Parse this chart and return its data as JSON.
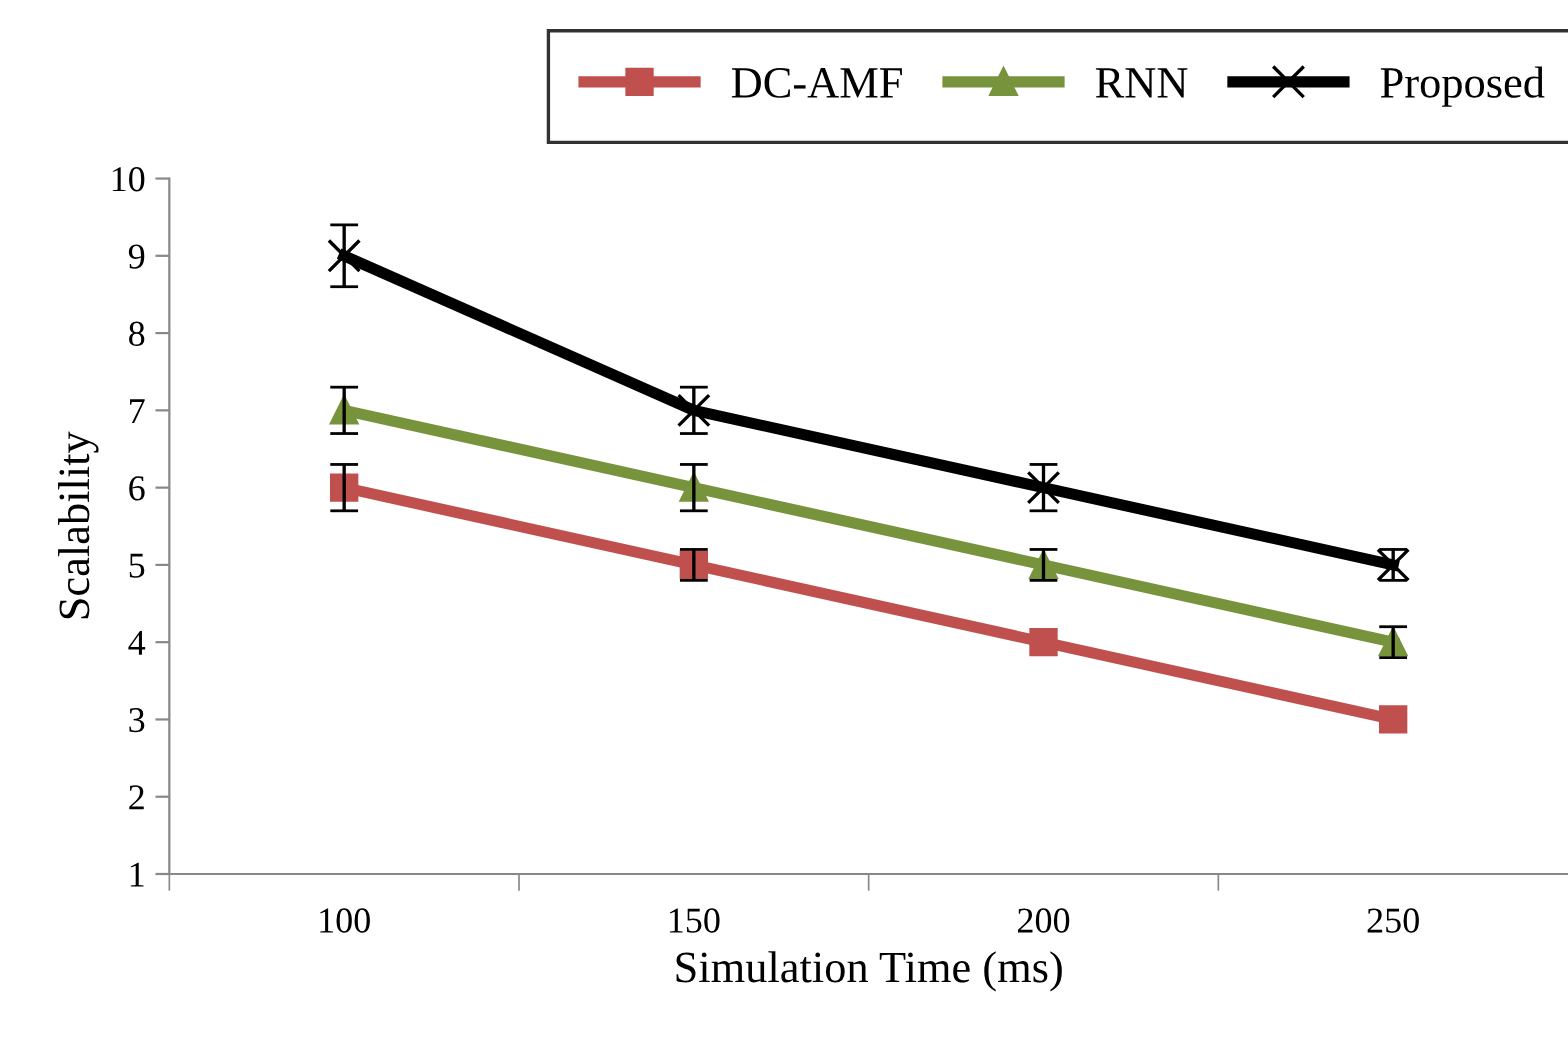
{
  "chart_data": {
    "type": "line",
    "xlabel": "Simulation Time (ms)",
    "ylabel": "Scalability",
    "categories": [
      "100",
      "150",
      "200",
      "250"
    ],
    "ylim": [
      1,
      10
    ],
    "yticks": [
      1,
      2,
      3,
      4,
      5,
      6,
      7,
      8,
      9,
      10
    ],
    "grid": false,
    "legend": "top",
    "line_style": "solid",
    "series": [
      {
        "name": "DC-AMF",
        "color": "#c0504d",
        "marker": "square",
        "values": [
          6,
          5,
          4,
          3
        ],
        "errors": [
          0.3,
          0.2,
          null,
          null
        ]
      },
      {
        "name": "RNN",
        "color": "#77933c",
        "marker": "triangle",
        "values": [
          7,
          6,
          5,
          4
        ],
        "errors": [
          0.3,
          0.3,
          0.2,
          0.2
        ]
      },
      {
        "name": "Proposed",
        "color": "#000000",
        "marker": "cross",
        "values": [
          9,
          7,
          6,
          5
        ],
        "errors": [
          0.4,
          0.3,
          0.3,
          0.2
        ]
      }
    ]
  }
}
